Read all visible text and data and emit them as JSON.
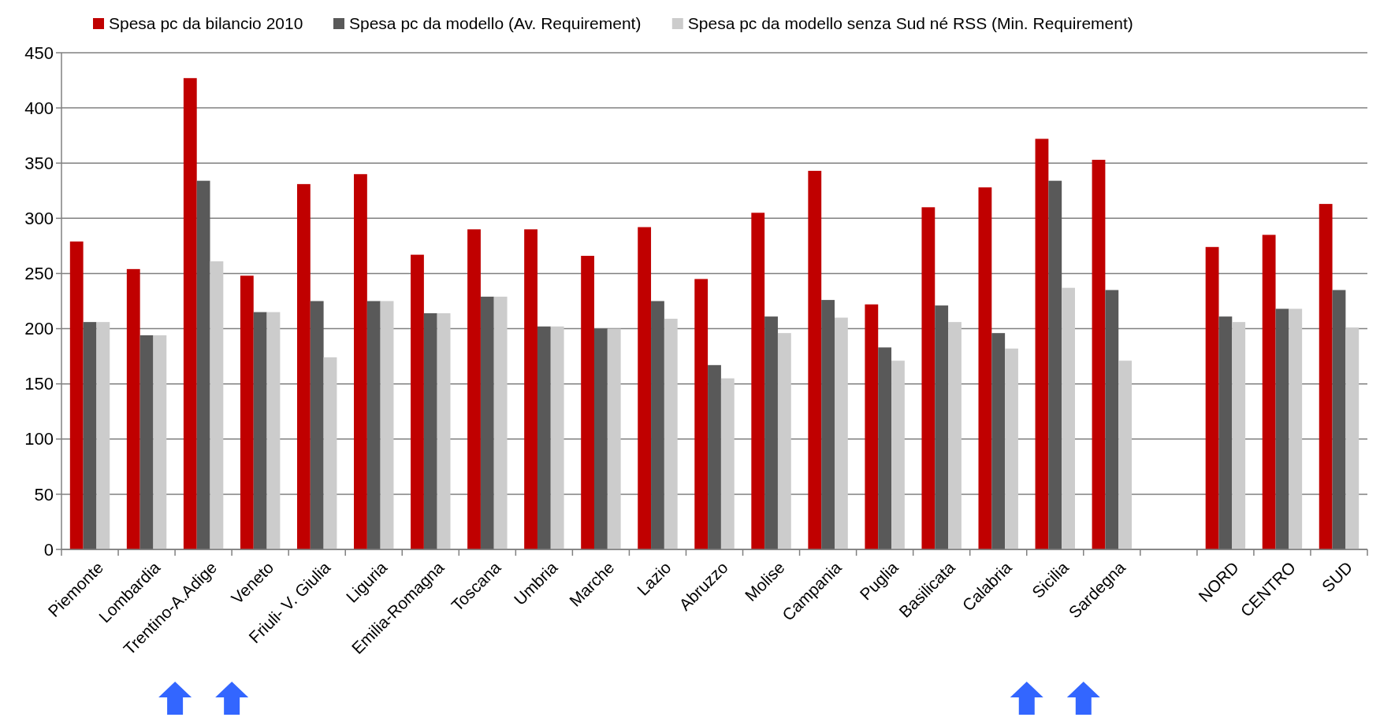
{
  "chart_data": {
    "type": "bar",
    "categories": [
      "Piemonte",
      "Lombardia",
      "Trentino-A.Adige",
      "Veneto",
      "Friuli- V. Giulia",
      "Liguria",
      "Emilia-Romagna",
      "Toscana",
      "Umbria",
      "Marche",
      "Lazio",
      "Abruzzo",
      "Molise",
      "Campania",
      "Puglia",
      "Basilicata",
      "Calabria",
      "Sicilia",
      "Sardegna",
      null,
      "NORD",
      "CENTRO",
      "SUD"
    ],
    "series": [
      {
        "name": "Spesa pc da bilancio 2010",
        "color": "#c00000",
        "values": [
          279,
          254,
          427,
          248,
          331,
          340,
          267,
          290,
          290,
          266,
          292,
          245,
          305,
          343,
          222,
          310,
          328,
          372,
          353,
          null,
          274,
          285,
          313
        ]
      },
      {
        "name": "Spesa pc da modello (Av. Requirement)",
        "color": "#595959",
        "values": [
          206,
          194,
          334,
          215,
          225,
          225,
          214,
          229,
          202,
          200,
          225,
          167,
          211,
          226,
          183,
          221,
          196,
          334,
          235,
          null,
          211,
          218,
          235
        ]
      },
      {
        "name": "Spesa pc da modello senza Sud né RSS (Min. Requirement)",
        "color": "#cccccc",
        "values": [
          206,
          194,
          261,
          215,
          174,
          225,
          214,
          229,
          202,
          200,
          209,
          155,
          196,
          210,
          171,
          206,
          182,
          237,
          171,
          null,
          206,
          218,
          201
        ]
      }
    ],
    "ylim": [
      0,
      450
    ],
    "yticks": [
      0,
      50,
      100,
      150,
      200,
      250,
      300,
      350,
      400,
      450
    ],
    "grid": "y",
    "legend": "top"
  }
}
